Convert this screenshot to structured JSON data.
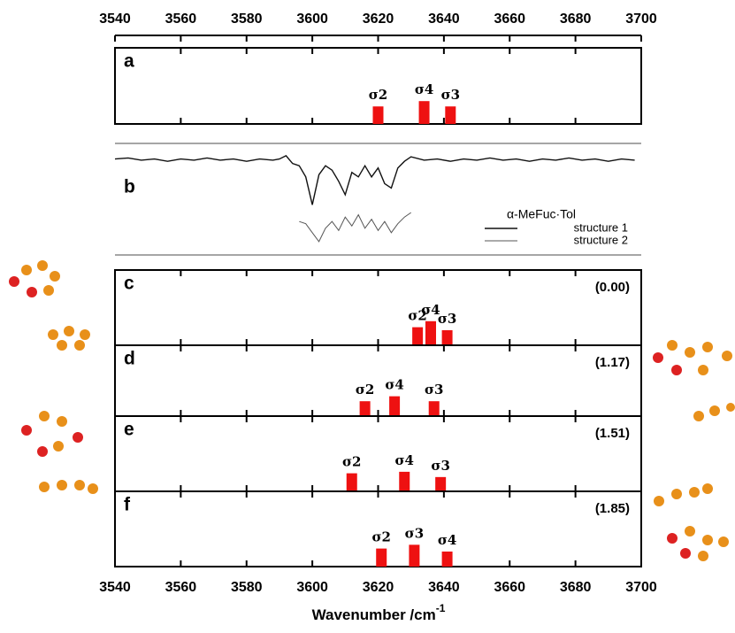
{
  "chart_data": {
    "xlabel": "Wavenumber /cm",
    "xlabel_superscript": "-1",
    "xlim": [
      3540,
      3700
    ],
    "xticks": [
      3540,
      3560,
      3580,
      3600,
      3620,
      3640,
      3660,
      3680,
      3700
    ],
    "panels": [
      {
        "type": "bar",
        "label": "a",
        "color": "#ee1111",
        "ylim": [
          0,
          100
        ],
        "x": [
          3620,
          3634,
          3642
        ],
        "categories": [
          "σ2",
          "σ4",
          "σ3"
        ],
        "values": [
          23,
          30,
          23
        ]
      },
      {
        "type": "line",
        "label": "b",
        "ylim": [
          0,
          100
        ],
        "legend_title": "α-MeFuc·Tol",
        "series": [
          {
            "name": "structure 1",
            "color": "#111111",
            "x": [
              3540,
              3544,
              3548,
              3552,
              3556,
              3560,
              3564,
              3568,
              3572,
              3576,
              3580,
              3584,
              3588,
              3590,
              3592,
              3594,
              3596,
              3598,
              3600,
              3602,
              3604,
              3606,
              3608,
              3610,
              3612,
              3614,
              3616,
              3618,
              3620,
              3622,
              3624,
              3626,
              3628,
              3630,
              3634,
              3638,
              3642,
              3646,
              3650,
              3654,
              3658,
              3662,
              3666,
              3670,
              3674,
              3678,
              3682,
              3686,
              3690,
              3694,
              3698
            ],
            "values": [
              86,
              87,
              85,
              86,
              84,
              86,
              85,
              87,
              85,
              86,
              84,
              86,
              85,
              86,
              89,
              82,
              80,
              70,
              45,
              72,
              80,
              76,
              66,
              54,
              74,
              70,
              80,
              70,
              78,
              64,
              60,
              78,
              84,
              88,
              85,
              86,
              84,
              86,
              85,
              87,
              85,
              86,
              84,
              86,
              85,
              87,
              85,
              86,
              84,
              86,
              85
            ]
          },
          {
            "name": "structure 2",
            "color": "#555555",
            "x": [
              3596,
              3598,
              3600,
              3602,
              3604,
              3606,
              3608,
              3610,
              3612,
              3614,
              3616,
              3618,
              3620,
              3622,
              3624,
              3626,
              3628,
              3630
            ],
            "values": [
              30,
              28,
              20,
              12,
              24,
              30,
              22,
              34,
              26,
              36,
              24,
              32,
              22,
              30,
              20,
              28,
              34,
              38
            ]
          }
        ]
      },
      {
        "type": "bar",
        "label": "c",
        "annotation": "(0.00)",
        "color": "#ee1111",
        "ylim": [
          0,
          100
        ],
        "x": [
          3632,
          3636,
          3641
        ],
        "categories": [
          "σ2",
          "σ4",
          "σ3"
        ],
        "values": [
          24,
          32,
          20
        ]
      },
      {
        "type": "bar",
        "label": "d",
        "annotation": "(1.17)",
        "color": "#ee1111",
        "ylim": [
          0,
          100
        ],
        "x": [
          3616,
          3625,
          3637
        ],
        "categories": [
          "σ2",
          "σ4",
          "σ3"
        ],
        "values": [
          21,
          28,
          21
        ]
      },
      {
        "type": "bar",
        "label": "e",
        "annotation": "(1.51)",
        "color": "#ee1111",
        "ylim": [
          0,
          100
        ],
        "x": [
          3612,
          3628,
          3639
        ],
        "categories": [
          "σ2",
          "σ4",
          "σ3"
        ],
        "values": [
          24,
          26,
          19
        ]
      },
      {
        "type": "bar",
        "label": "f",
        "annotation": "(1.85)",
        "color": "#ee1111",
        "ylim": [
          0,
          100
        ],
        "x": [
          3621,
          3631,
          3641
        ],
        "categories": [
          "σ2",
          "σ3",
          "σ4"
        ],
        "values": [
          24,
          29,
          20
        ]
      }
    ]
  }
}
